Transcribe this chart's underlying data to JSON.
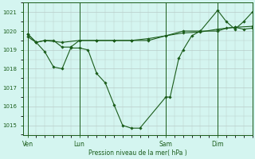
{
  "bg_color": "#d4f5f0",
  "plot_bg_color": "#d4f5f0",
  "grid_color": "#b8ccc8",
  "line_color": "#1a5c1a",
  "marker_color": "#1a5c1a",
  "xlabel": "Pression niveau de la mer( hPa )",
  "ylim": [
    1014.5,
    1021.5
  ],
  "yticks": [
    1015,
    1016,
    1017,
    1018,
    1019,
    1020,
    1021
  ],
  "xtick_labels": [
    "Ven",
    "Lun",
    "Sam",
    "Dim"
  ],
  "xtick_positions": [
    0,
    24,
    64,
    88
  ],
  "xlim": [
    -2,
    104
  ],
  "vlines": [
    0,
    24,
    64,
    88
  ],
  "series": [
    [
      0,
      1019.7,
      4,
      1019.4,
      8,
      1018.9,
      12,
      1018.1,
      16,
      1018.0,
      20,
      1019.1,
      24,
      1019.1,
      28,
      1019.0,
      32,
      1017.75,
      36,
      1017.25,
      40,
      1016.1,
      44,
      1015.0,
      48,
      1014.85,
      52,
      1014.85,
      64,
      1016.5,
      66,
      1016.5,
      70,
      1018.55,
      72,
      1019.0,
      76,
      1019.75,
      80,
      1020.0,
      88,
      1021.1,
      92,
      1020.5,
      96,
      1020.1,
      100,
      1020.5,
      104,
      1021.0
    ],
    [
      0,
      1019.85,
      4,
      1019.4,
      8,
      1019.5,
      12,
      1019.5,
      16,
      1019.15,
      20,
      1019.15,
      24,
      1019.5,
      32,
      1019.5,
      40,
      1019.5,
      48,
      1019.5,
      56,
      1019.5,
      64,
      1019.75,
      72,
      1020.0,
      80,
      1020.0,
      88,
      1020.0,
      92,
      1020.15,
      96,
      1020.2,
      100,
      1020.1,
      104,
      1020.15
    ],
    [
      0,
      1019.85,
      4,
      1019.4,
      8,
      1019.5,
      16,
      1019.4,
      24,
      1019.5,
      32,
      1019.5,
      40,
      1019.5,
      48,
      1019.5,
      56,
      1019.6,
      64,
      1019.75,
      72,
      1019.9,
      80,
      1019.95,
      88,
      1020.1,
      96,
      1020.2,
      104,
      1020.25
    ]
  ]
}
